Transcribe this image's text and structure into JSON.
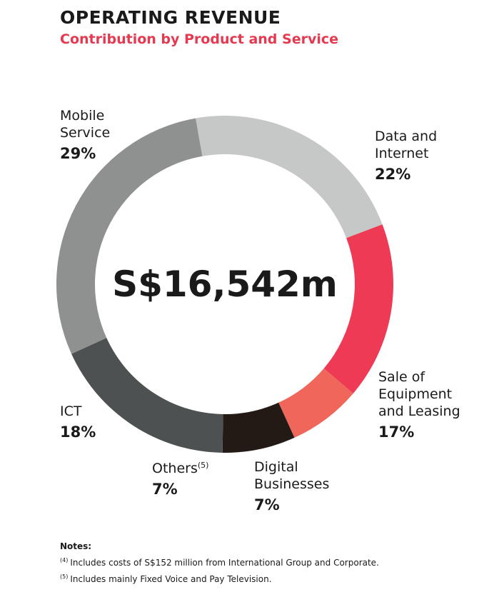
{
  "header": {
    "title": "OPERATING REVENUE",
    "subtitle": "Contribution by Product and Service"
  },
  "chart_data": {
    "type": "pie",
    "center_label": "S$16,542m",
    "slices": [
      {
        "label_lines": [
          "Data and",
          "Internet"
        ],
        "value": 22,
        "value_label": "22%",
        "color": "#c5c8c6"
      },
      {
        "label_lines": [
          "Sale of",
          "Equipment",
          "and Leasing"
        ],
        "value": 17,
        "value_label": "17%",
        "color": "#ee3a55"
      },
      {
        "label_lines": [
          "Digital",
          "Businesses"
        ],
        "value": 7,
        "value_label": "7%",
        "color": "#f0665a"
      },
      {
        "label_lines": [
          "Others"
        ],
        "label_sup": "(5)",
        "value": 7,
        "value_label": "7%",
        "color": "#231a15"
      },
      {
        "label_lines": [
          "ICT"
        ],
        "value": 18,
        "value_label": "18%",
        "color": "#4e5151"
      },
      {
        "label_lines": [
          "Mobile",
          "Service"
        ],
        "value": 29,
        "value_label": "29%",
        "color": "#8f9190"
      }
    ]
  },
  "notes": {
    "title": "Notes:",
    "items": [
      {
        "marker": "(4)",
        "text": "Includes costs of S$152 million from International Group and Corporate."
      },
      {
        "marker": "(5)",
        "text": "Includes mainly Fixed Voice and Pay Television."
      }
    ]
  }
}
